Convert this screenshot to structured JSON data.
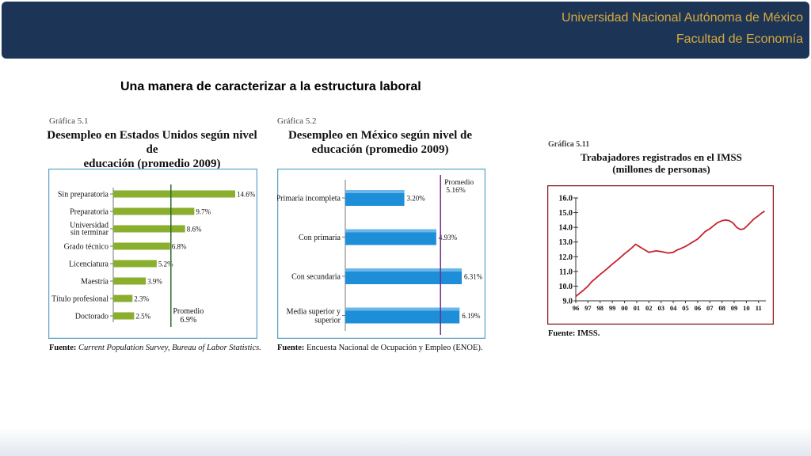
{
  "header": {
    "university": "Universidad Nacional Autónoma de México",
    "faculty": "Facultad de Economía"
  },
  "slide_title": "Una manera de caracterizar a la estructura laboral",
  "colors": {
    "header_bg": "#1c3557",
    "header_text": "#d9a93c",
    "green_bar": "#8aae2e",
    "blue_bar": "#1f8ed8",
    "red_line": "#c8222c",
    "panel_border": "#5fa6c8"
  },
  "chart_data": [
    {
      "type": "bar",
      "orientation": "horizontal",
      "caption": "Gráfica 5.1",
      "title_line1": "Desempleo en Estados Unidos según nivel de",
      "title_line2": "educación (promedio 2009)",
      "categories": [
        "Sin preparatoria",
        "Preparatoria",
        "Universidad sin terminar",
        "Grado técnico",
        "Licenciatura",
        "Maestría",
        "Título profesional",
        "Doctorado"
      ],
      "values": [
        14.6,
        9.7,
        8.6,
        6.8,
        5.2,
        3.9,
        2.3,
        2.5
      ],
      "value_labels": [
        "14.6%",
        "9.7%",
        "8.6%",
        "6.8%",
        "5.2%",
        "3.9%",
        "2.3%",
        "2.5%"
      ],
      "xlim": [
        0,
        14.6
      ],
      "average": 6.9,
      "average_label_line1": "Promedio",
      "average_label_line2": "6.9%",
      "source_label": "Fuente:",
      "source_text": "Current Population Survey, Bureau of Labor Statistics."
    },
    {
      "type": "bar",
      "orientation": "horizontal",
      "caption": "Gráfica 5.2",
      "title_line1": "Desempleo en México según nivel de",
      "title_line2": "educación (promedio 2009)",
      "categories": [
        "Primaria incompleta",
        "Con primaria",
        "Con secundaria",
        "Media superior y superior"
      ],
      "values": [
        3.2,
        4.93,
        6.31,
        6.19
      ],
      "value_labels": [
        "3.20%",
        "4.93%",
        "6.31%",
        "6.19%"
      ],
      "xlim": [
        0,
        6.31
      ],
      "average": 5.16,
      "average_label_line1": "Promedio",
      "average_label_line2": "5.16%",
      "source_label": "Fuente:",
      "source_text": "Encuesta Nacional de Ocupación y Empleo (ENOE)."
    },
    {
      "type": "line",
      "caption": "Gráfica 5.11",
      "title_line1": "Trabajadores registrados en el IMSS",
      "title_line2": "(millones de personas)",
      "x_ticks": [
        "96",
        "97",
        "98",
        "99",
        "00",
        "01",
        "02",
        "03",
        "04",
        "05",
        "06",
        "07",
        "08",
        "09",
        "10",
        "11"
      ],
      "y_ticks": [
        "9.0",
        "10.0",
        "11.0",
        "12.0",
        "13.0",
        "14.0",
        "15.0",
        "16.0"
      ],
      "xlim": [
        1996,
        2011.6
      ],
      "ylim": [
        9.0,
        16.0
      ],
      "x": [
        1996.0,
        1996.3,
        1996.6,
        1997.0,
        1997.3,
        1997.6,
        1998.0,
        1998.3,
        1998.6,
        1999.0,
        1999.3,
        1999.6,
        2000.0,
        2000.3,
        2000.6,
        2000.9,
        2001.2,
        2001.5,
        2001.8,
        2002.0,
        2002.3,
        2002.6,
        2003.0,
        2003.3,
        2003.6,
        2004.0,
        2004.3,
        2004.6,
        2005.0,
        2005.3,
        2005.6,
        2006.0,
        2006.3,
        2006.6,
        2007.0,
        2007.3,
        2007.6,
        2008.0,
        2008.3,
        2008.6,
        2008.9,
        2009.2,
        2009.5,
        2009.8,
        2010.0,
        2010.3,
        2010.6,
        2011.0,
        2011.3,
        2011.5
      ],
      "y": [
        9.3,
        9.5,
        9.7,
        10.0,
        10.3,
        10.5,
        10.8,
        11.0,
        11.2,
        11.5,
        11.7,
        11.9,
        12.2,
        12.4,
        12.6,
        12.85,
        12.7,
        12.55,
        12.4,
        12.3,
        12.35,
        12.4,
        12.35,
        12.3,
        12.25,
        12.3,
        12.45,
        12.55,
        12.7,
        12.85,
        13.0,
        13.2,
        13.45,
        13.7,
        13.9,
        14.1,
        14.3,
        14.45,
        14.5,
        14.45,
        14.3,
        14.0,
        13.85,
        13.9,
        14.05,
        14.3,
        14.55,
        14.8,
        15.0,
        15.1
      ],
      "source_label": "Fuente:",
      "source_text": "IMSS."
    }
  ]
}
